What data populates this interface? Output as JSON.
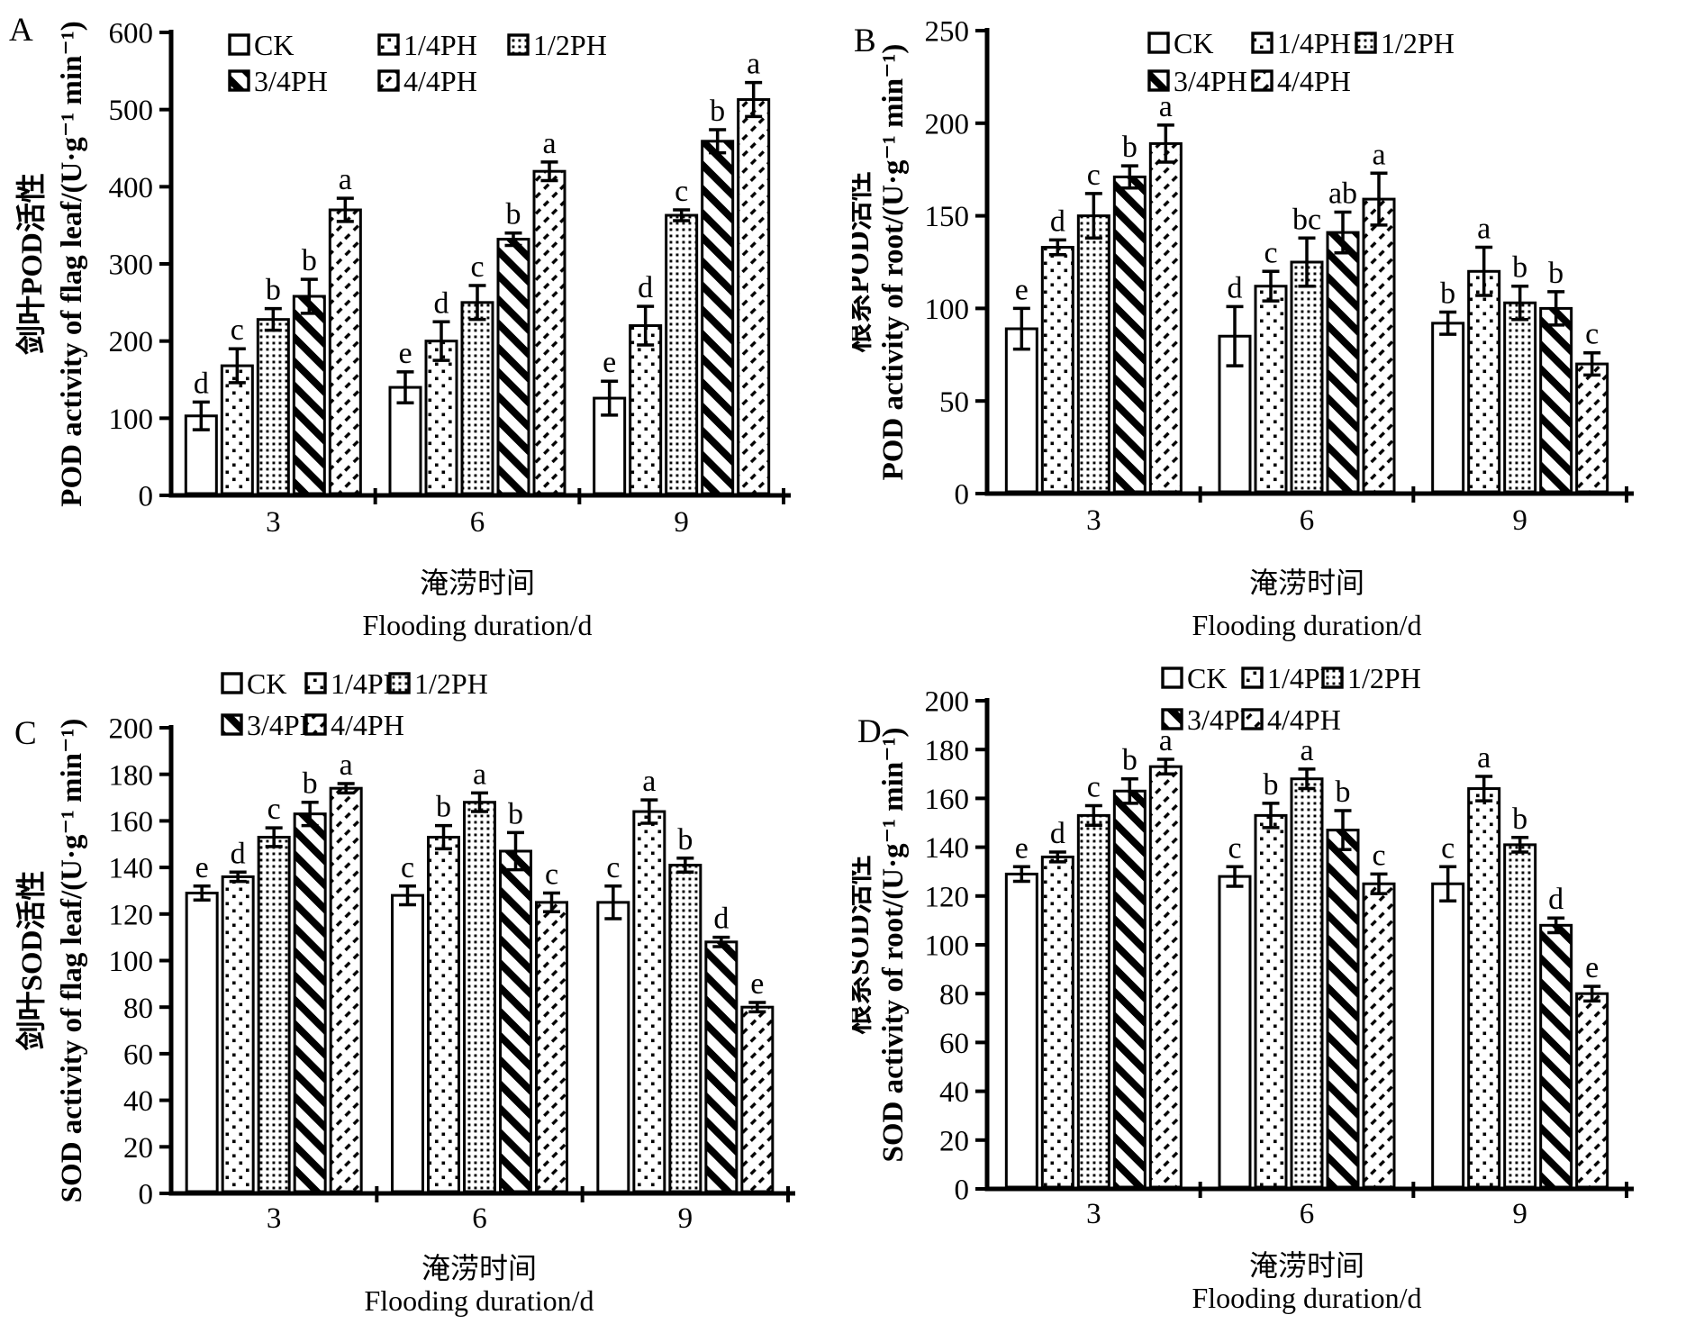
{
  "figure": {
    "background": "#ffffff",
    "ink_color": "#000000",
    "series_names": [
      "CK",
      "1/4PH",
      "1/2PH",
      "3/4PH",
      "4/4PH"
    ],
    "series_patterns": [
      "plain",
      "dots-sparse",
      "dots-dense",
      "stripes-heavy",
      "dashes-light"
    ]
  },
  "chart_data": [
    {
      "id": "A",
      "label": "A",
      "type": "bar",
      "ylabel_zh": "剑叶POD活性",
      "ylabel_en": "POD activity of flag leaf/(U·g⁻¹ min⁻¹)",
      "xlabel_zh": "淹涝时间",
      "xlabel_en": "Flooding duration/d",
      "ylim": [
        0,
        600
      ],
      "ystep": 100,
      "grid": false,
      "legend_position": "top-inside",
      "categories": [
        "3",
        "6",
        "9"
      ],
      "series": [
        {
          "name": "CK",
          "pattern": "plain",
          "values": [
            103,
            140,
            126
          ],
          "errors": [
            18,
            20,
            22
          ],
          "letters": [
            "d",
            "e",
            "e"
          ]
        },
        {
          "name": "1/4PH",
          "pattern": "dots-sparse",
          "values": [
            168,
            200,
            220
          ],
          "errors": [
            22,
            25,
            25
          ],
          "letters": [
            "c",
            "d",
            "d"
          ]
        },
        {
          "name": "1/2PH",
          "pattern": "dots-dense",
          "values": [
            228,
            250,
            363
          ],
          "errors": [
            14,
            22,
            7
          ],
          "letters": [
            "b",
            "c",
            "c"
          ]
        },
        {
          "name": "3/4PH",
          "pattern": "stripes-heavy",
          "values": [
            258,
            332,
            459
          ],
          "errors": [
            22,
            8,
            15
          ],
          "letters": [
            "b",
            "b",
            "b"
          ]
        },
        {
          "name": "4/4PH",
          "pattern": "dashes-light",
          "values": [
            370,
            420,
            513
          ],
          "errors": [
            15,
            12,
            22
          ],
          "letters": [
            "a",
            "a",
            "a"
          ]
        }
      ]
    },
    {
      "id": "B",
      "label": "B",
      "type": "bar",
      "ylabel_zh": "根系POD活性",
      "ylabel_en": "POD activity of root/(U·g⁻¹ min⁻¹)",
      "xlabel_zh": "淹涝时间",
      "xlabel_en": "Flooding duration/d",
      "ylim": [
        0,
        250
      ],
      "ystep": 50,
      "grid": false,
      "legend_position": "top-inside",
      "categories": [
        "3",
        "6",
        "9"
      ],
      "series": [
        {
          "name": "CK",
          "pattern": "plain",
          "values": [
            89,
            85,
            92
          ],
          "errors": [
            11,
            16,
            6
          ],
          "letters": [
            "e",
            "d",
            "b"
          ]
        },
        {
          "name": "1/4PH",
          "pattern": "dots-sparse",
          "values": [
            133,
            112,
            120
          ],
          "errors": [
            4,
            8,
            13
          ],
          "letters": [
            "d",
            "c",
            "a"
          ]
        },
        {
          "name": "1/2PH",
          "pattern": "dots-dense",
          "values": [
            150,
            125,
            103
          ],
          "errors": [
            12,
            13,
            9
          ],
          "letters": [
            "c",
            "bc",
            "b"
          ]
        },
        {
          "name": "3/4PH",
          "pattern": "stripes-heavy",
          "values": [
            171,
            141,
            100
          ],
          "errors": [
            6,
            11,
            9
          ],
          "letters": [
            "b",
            "ab",
            "b"
          ]
        },
        {
          "name": "4/4PH",
          "pattern": "dashes-light",
          "values": [
            189,
            159,
            70
          ],
          "errors": [
            10,
            14,
            6
          ],
          "letters": [
            "a",
            "a",
            "c"
          ]
        }
      ]
    },
    {
      "id": "C",
      "label": "C",
      "type": "bar",
      "ylabel_zh": "剑叶SOD活性",
      "ylabel_en": "SOD activity of flag leaf/(U·g⁻¹ min⁻¹)",
      "xlabel_zh": "淹涝时间",
      "xlabel_en": "Flooding duration/d",
      "ylim": [
        0,
        200
      ],
      "ystep": 20,
      "grid": false,
      "legend_position": "top-above",
      "categories": [
        "3",
        "6",
        "9"
      ],
      "series": [
        {
          "name": "CK",
          "pattern": "plain",
          "values": [
            129,
            128,
            125
          ],
          "errors": [
            3,
            4,
            7
          ],
          "letters": [
            "e",
            "c",
            "c"
          ]
        },
        {
          "name": "1/4PH",
          "pattern": "dots-sparse",
          "values": [
            136,
            153,
            164
          ],
          "errors": [
            2,
            5,
            5
          ],
          "letters": [
            "d",
            "b",
            "a"
          ]
        },
        {
          "name": "1/2PH",
          "pattern": "dots-dense",
          "values": [
            153,
            168,
            141
          ],
          "errors": [
            4,
            4,
            3
          ],
          "letters": [
            "c",
            "a",
            "b"
          ]
        },
        {
          "name": "3/4PH",
          "pattern": "stripes-heavy",
          "values": [
            163,
            147,
            108
          ],
          "errors": [
            5,
            8,
            2
          ],
          "letters": [
            "b",
            "b",
            "d"
          ]
        },
        {
          "name": "4/4PH",
          "pattern": "dashes-light",
          "values": [
            174,
            125,
            80
          ],
          "errors": [
            2,
            4,
            2
          ],
          "letters": [
            "a",
            "c",
            "e"
          ]
        }
      ]
    },
    {
      "id": "D",
      "label": "D",
      "type": "bar",
      "ylabel_zh": "根系SOD活性",
      "ylabel_en": "SOD activity of root/(U·g⁻¹ min⁻¹)",
      "xlabel_zh": "淹涝时间",
      "xlabel_en": "Flooding duration/d",
      "ylim": [
        0,
        200
      ],
      "ystep": 20,
      "grid": false,
      "legend_position": "top-above",
      "categories": [
        "3",
        "6",
        "9"
      ],
      "series": [
        {
          "name": "CK",
          "pattern": "plain",
          "values": [
            129,
            128,
            125
          ],
          "errors": [
            3,
            4,
            7
          ],
          "letters": [
            "e",
            "c",
            "c"
          ]
        },
        {
          "name": "1/4PH",
          "pattern": "dots-sparse",
          "values": [
            136,
            153,
            164
          ],
          "errors": [
            2,
            5,
            5
          ],
          "letters": [
            "d",
            "b",
            "a"
          ]
        },
        {
          "name": "1/2PH",
          "pattern": "dots-dense",
          "values": [
            153,
            168,
            141
          ],
          "errors": [
            4,
            4,
            3
          ],
          "letters": [
            "c",
            "a",
            "b"
          ]
        },
        {
          "name": "3/4PH",
          "pattern": "stripes-heavy",
          "values": [
            163,
            147,
            108
          ],
          "errors": [
            5,
            8,
            3
          ],
          "letters": [
            "b",
            "b",
            "d"
          ]
        },
        {
          "name": "4/4PH",
          "pattern": "dashes-light",
          "values": [
            173,
            125,
            80
          ],
          "errors": [
            3,
            4,
            3
          ],
          "letters": [
            "a",
            "c",
            "e"
          ]
        }
      ]
    }
  ]
}
